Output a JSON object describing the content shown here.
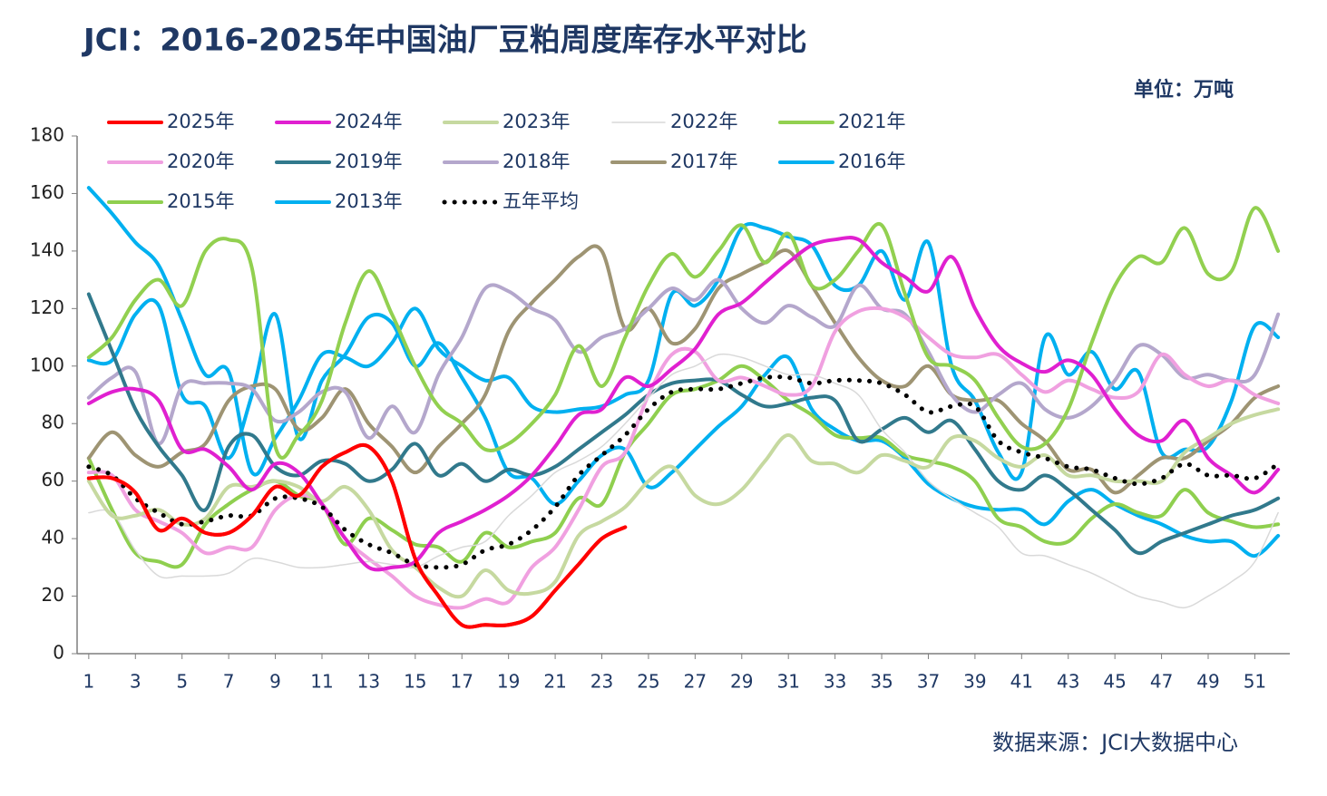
{
  "chart_data": {
    "type": "line",
    "title": "JCI：2016-2025年中国油厂豆粕周度库存水平对比",
    "unit": "单位：万吨",
    "source": "数据来源：JCI大数据中心",
    "x": [
      1,
      2,
      3,
      4,
      5,
      6,
      7,
      8,
      9,
      10,
      11,
      12,
      13,
      14,
      15,
      16,
      17,
      18,
      19,
      20,
      21,
      22,
      23,
      24,
      25,
      26,
      27,
      28,
      29,
      30,
      31,
      32,
      33,
      34,
      35,
      36,
      37,
      38,
      39,
      40,
      41,
      42,
      43,
      44,
      45,
      46,
      47,
      48,
      49,
      50,
      51,
      52
    ],
    "xlim": [
      0.5,
      52.5
    ],
    "xticks": [
      1,
      3,
      5,
      7,
      9,
      11,
      13,
      15,
      17,
      19,
      21,
      23,
      25,
      27,
      29,
      31,
      33,
      35,
      37,
      39,
      41,
      43,
      45,
      47,
      49,
      51
    ],
    "ylim": [
      0,
      180
    ],
    "yticks": [
      0,
      20,
      40,
      60,
      80,
      100,
      120,
      140,
      160,
      180
    ],
    "series": [
      {
        "name": "2025年",
        "color": "#ff0000",
        "values": [
          61,
          61,
          56,
          43,
          47,
          42,
          42,
          48,
          58,
          55,
          65,
          70,
          72,
          60,
          33,
          20,
          10,
          10,
          10,
          13,
          22,
          31,
          40,
          44,
          null,
          null,
          null,
          null,
          null,
          null,
          null,
          null,
          null,
          null,
          null,
          null,
          null,
          null,
          null,
          null,
          null,
          null,
          null,
          null,
          null,
          null,
          null,
          null,
          null,
          null,
          null,
          null
        ]
      },
      {
        "name": "2024年",
        "color": "#e020d0",
        "values": [
          87,
          91,
          92,
          88,
          71,
          71,
          65,
          57,
          66,
          63,
          52,
          40,
          30,
          30,
          32,
          42,
          46,
          50,
          55,
          62,
          72,
          83,
          85,
          96,
          93,
          99,
          106,
          118,
          122,
          129,
          136,
          142,
          144,
          144,
          136,
          131,
          126,
          138,
          120,
          107,
          101,
          98,
          102,
          97,
          85,
          76,
          74,
          81,
          68,
          62,
          56,
          64
        ]
      },
      {
        "name": "2023年",
        "color": "#c6d9a0",
        "values": [
          60,
          48,
          48,
          50,
          45,
          47,
          58,
          58,
          60,
          58,
          53,
          58,
          50,
          36,
          30,
          23,
          20,
          29,
          22,
          21,
          25,
          41,
          46,
          51,
          60,
          65,
          55,
          52,
          57,
          67,
          76,
          67,
          66,
          63,
          69,
          67,
          65,
          75,
          74,
          68,
          65,
          69,
          62,
          62,
          60,
          60,
          60,
          70,
          75,
          80,
          83,
          85
        ]
      },
      {
        "name": "2022年",
        "color": "#d9d9d9",
        "linewidth": 1.5,
        "values": [
          49,
          49,
          36,
          27,
          27,
          27,
          28,
          33,
          32,
          30,
          30,
          31,
          32,
          31,
          30,
          34,
          37,
          39,
          48,
          55,
          63,
          67,
          72,
          80,
          89,
          97,
          100,
          104,
          103,
          100,
          97,
          97,
          94,
          90,
          78,
          70,
          60,
          54,
          49,
          44,
          35,
          34,
          31,
          28,
          24,
          20,
          18,
          16,
          20,
          25,
          32,
          49
        ]
      },
      {
        "name": "2021年",
        "color": "#92d050",
        "values": [
          103,
          110,
          123,
          130,
          121,
          140,
          144,
          134,
          72,
          76,
          88,
          115,
          133,
          118,
          100,
          86,
          80,
          71,
          73,
          80,
          90,
          107,
          93,
          110,
          128,
          139,
          131,
          140,
          149,
          136,
          146,
          128,
          130,
          140,
          149,
          125,
          103,
          100,
          95,
          82,
          72,
          73,
          85,
          108,
          128,
          138,
          136,
          148,
          132,
          133,
          155,
          140
        ]
      },
      {
        "name": "2020年",
        "color": "#f0a0e0",
        "values": [
          63,
          62,
          50,
          46,
          42,
          35,
          37,
          37,
          50,
          55,
          52,
          40,
          33,
          27,
          20,
          17,
          16,
          19,
          18,
          30,
          37,
          50,
          65,
          70,
          90,
          104,
          105,
          95,
          96,
          93,
          90,
          93,
          112,
          119,
          120,
          117,
          110,
          104,
          103,
          104,
          97,
          91,
          95,
          92,
          89,
          91,
          104,
          97,
          93,
          95,
          90,
          87
        ]
      },
      {
        "name": "2019年",
        "color": "#31798c",
        "values": [
          125,
          105,
          85,
          72,
          62,
          50,
          72,
          76,
          65,
          62,
          67,
          66,
          60,
          64,
          73,
          62,
          66,
          60,
          64,
          62,
          65,
          71,
          77,
          83,
          90,
          94,
          95,
          95,
          90,
          86,
          87,
          89,
          88,
          74,
          78,
          82,
          77,
          81,
          71,
          60,
          57,
          62,
          57,
          50,
          43,
          35,
          39,
          42,
          45,
          48,
          50,
          54
        ]
      },
      {
        "name": "2018年",
        "color": "#b4a7cc",
        "values": [
          89,
          96,
          98,
          73,
          93,
          94,
          94,
          92,
          81,
          84,
          91,
          91,
          75,
          86,
          77,
          97,
          110,
          127,
          126,
          120,
          116,
          105,
          110,
          113,
          120,
          127,
          123,
          130,
          120,
          115,
          121,
          117,
          114,
          128,
          120,
          118,
          105,
          90,
          84,
          90,
          94,
          85,
          82,
          86,
          95,
          107,
          104,
          96,
          97,
          95,
          97,
          118
        ]
      },
      {
        "name": "2017年",
        "color": "#9e9473",
        "values": [
          68,
          77,
          69,
          65,
          70,
          73,
          88,
          93,
          92,
          78,
          82,
          92,
          80,
          72,
          63,
          72,
          80,
          90,
          112,
          122,
          130,
          138,
          140,
          113,
          120,
          108,
          113,
          127,
          132,
          136,
          140,
          128,
          115,
          103,
          95,
          93,
          100,
          90,
          88,
          88,
          80,
          74,
          64,
          64,
          56,
          62,
          68,
          68,
          74,
          80,
          89,
          93
        ]
      },
      {
        "name": "2016年",
        "color": "#00b0f0",
        "values": [
          162,
          153,
          143,
          135,
          116,
          97,
          98,
          63,
          75,
          88,
          104,
          103,
          100,
          108,
          120,
          106,
          100,
          95,
          96,
          86,
          84,
          85,
          86,
          90,
          95,
          125,
          121,
          130,
          148,
          148,
          145,
          142,
          128,
          128,
          140,
          123,
          143,
          100,
          88,
          70,
          63,
          110,
          97,
          105,
          92,
          98,
          70,
          71,
          72,
          88,
          114,
          110
        ]
      },
      {
        "name": "2015年",
        "color": "#8fcf4f",
        "values": [
          68,
          50,
          35,
          32,
          31,
          45,
          52,
          57,
          60,
          55,
          52,
          38,
          47,
          43,
          38,
          37,
          32,
          42,
          37,
          39,
          42,
          54,
          52,
          70,
          80,
          90,
          92,
          95,
          100,
          95,
          88,
          83,
          76,
          75,
          75,
          69,
          67,
          65,
          60,
          47,
          44,
          39,
          39,
          47,
          52,
          49,
          48,
          57,
          49,
          46,
          44,
          45
        ]
      },
      {
        "name": "2013年",
        "color": "#00b0f0",
        "values": [
          102,
          102,
          118,
          121,
          90,
          86,
          68,
          90,
          118,
          75,
          95,
          104,
          117,
          115,
          100,
          108,
          96,
          82,
          63,
          61,
          52,
          60,
          69,
          71,
          58,
          63,
          71,
          79,
          86,
          97,
          103,
          85,
          78,
          74,
          74,
          68,
          59,
          54,
          51,
          50,
          50,
          45,
          53,
          57,
          52,
          48,
          45,
          41,
          39,
          39,
          34,
          41
        ]
      },
      {
        "name": "五年平均",
        "color": "#000000",
        "line_style": "dotted",
        "values": [
          65,
          62,
          54,
          49,
          45,
          46,
          48,
          48,
          54,
          54,
          51,
          43,
          38,
          35,
          31,
          30,
          31,
          36,
          38,
          43,
          51,
          62,
          69,
          76,
          85,
          91,
          92,
          92,
          94,
          96,
          96,
          94,
          95,
          95,
          94,
          90,
          84,
          86,
          86,
          74,
          70,
          68,
          65,
          64,
          61,
          59,
          61,
          66,
          62,
          62,
          61,
          66
        ]
      }
    ]
  }
}
